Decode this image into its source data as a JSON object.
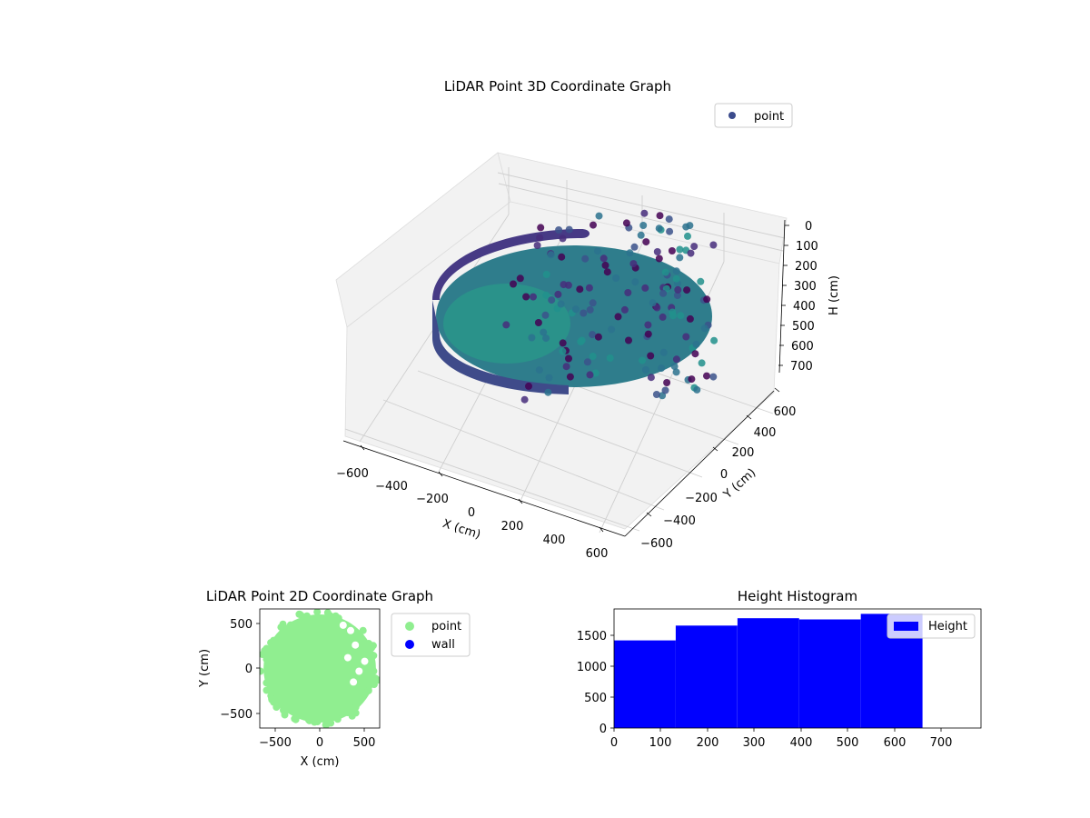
{
  "chart_data": [
    {
      "type": "scatter",
      "subtype": "scatter-3d",
      "title": "LiDAR Point 3D Coordinate Graph",
      "xlabel": "X (cm)",
      "ylabel": "Y (cm)",
      "zlabel": "H (cm)",
      "xticks": [
        "−600",
        "−400",
        "−200",
        "0",
        "200",
        "400",
        "600"
      ],
      "yticks": [
        "−600",
        "−400",
        "−200",
        "0",
        "200",
        "400",
        "600"
      ],
      "zticks": [
        "0",
        "100",
        "200",
        "300",
        "400",
        "500",
        "600",
        "700"
      ],
      "xlim": [
        -650,
        650
      ],
      "ylim": [
        -650,
        650
      ],
      "zlim": [
        0,
        750
      ],
      "z_axis_inverted": true,
      "grid": true,
      "legend": {
        "position": "top-right",
        "entries": [
          "point"
        ]
      },
      "series": [
        {
          "name": "point",
          "color": "#3b4b8c",
          "colormap": "viridis (by height)",
          "shape": "cylindrical wall",
          "radius_cm": 620,
          "height_range_cm": [
            0,
            660
          ]
        }
      ]
    },
    {
      "type": "scatter",
      "title": "LiDAR Point 2D Coordinate Graph",
      "xlabel": "X (cm)",
      "ylabel": "Y (cm)",
      "xticks": [
        "−500",
        "0",
        "500"
      ],
      "yticks": [
        "−500",
        "0",
        "500"
      ],
      "xlim": [
        -640,
        640
      ],
      "ylim": [
        -660,
        660
      ],
      "legend": {
        "position": "right-outside",
        "entries": [
          "point",
          "wall"
        ]
      },
      "series": [
        {
          "name": "point",
          "color": "#90ee90",
          "shape": "filled disc",
          "radius_cm": 600
        },
        {
          "name": "wall",
          "color": "#0000ff"
        }
      ]
    },
    {
      "type": "bar",
      "subtype": "histogram",
      "title": "Height Histogram",
      "xticks": [
        "0",
        "100",
        "200",
        "300",
        "400",
        "500",
        "600",
        "700"
      ],
      "yticks": [
        "0",
        "500",
        "1000",
        "1500"
      ],
      "xlim": [
        0,
        785
      ],
      "ylim": [
        0,
        1930
      ],
      "legend": {
        "position": "top-right",
        "entries": [
          "Height"
        ]
      },
      "series": [
        {
          "name": "Height",
          "color": "#0000ff",
          "bin_edges": [
            0,
            132,
            264,
            396,
            528,
            660
          ],
          "values": [
            1420,
            1660,
            1780,
            1760,
            1850
          ]
        }
      ]
    }
  ]
}
